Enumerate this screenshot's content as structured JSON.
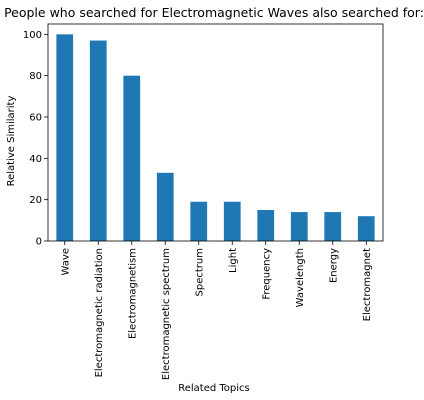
{
  "chart_data": {
    "type": "bar",
    "title": "People who searched for Electromagnetic Waves also searched for:",
    "xlabel": "Related Topics",
    "ylabel": "Relative Similarity",
    "categories": [
      "Wave",
      "Electromagnetic radiation",
      "Electromagnetism",
      "Electromagnetic spectrum",
      "Spectrum",
      "Light",
      "Frequency",
      "Wavelength",
      "Energy",
      "Electromagnet"
    ],
    "values": [
      100,
      97,
      80,
      33,
      19,
      19,
      15,
      14,
      14,
      12
    ],
    "ylim": [
      0,
      105
    ],
    "yticks": [
      0,
      20,
      40,
      60,
      80,
      100
    ],
    "grid": false,
    "legend": "none",
    "bar_color": "#1f77b4"
  }
}
